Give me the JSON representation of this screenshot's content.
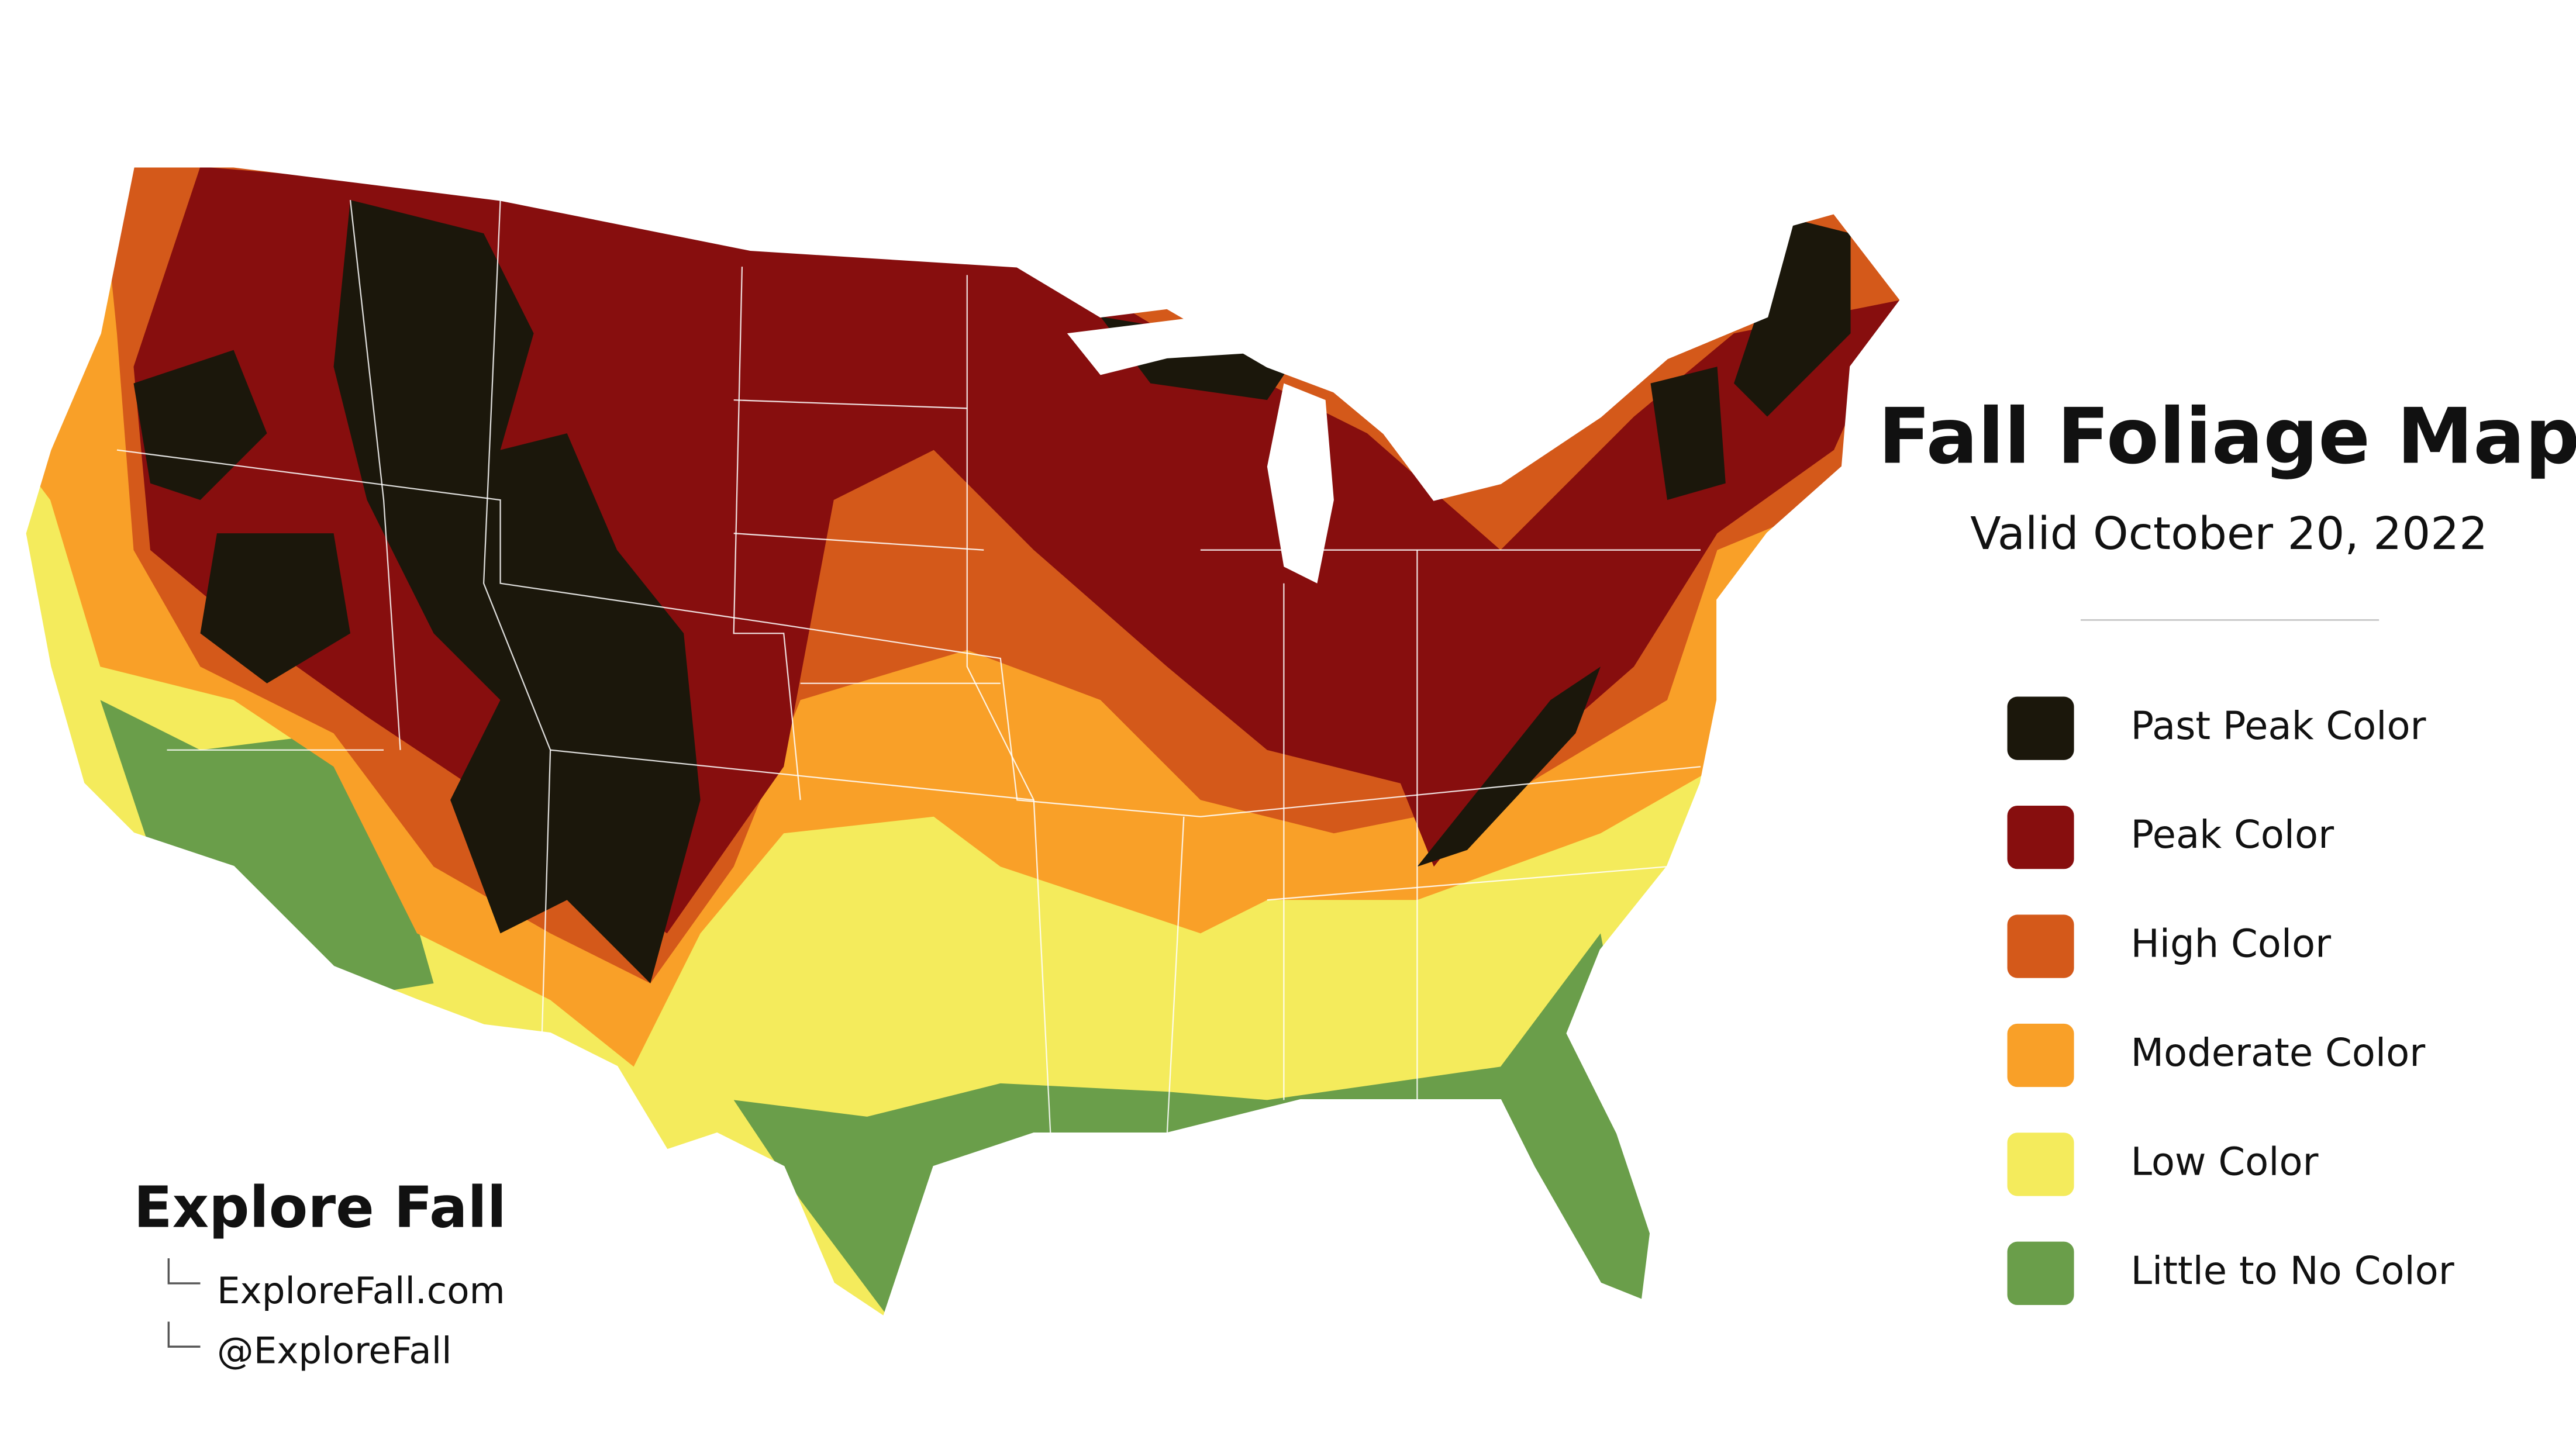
{
  "title": "Fall Foliage Map",
  "subtitle": "Valid October 20, 2022",
  "legend": {
    "items": [
      {
        "label": "Past Peak Color",
        "color": "#1b170b"
      },
      {
        "label": "Peak Color",
        "color": "#870e0e"
      },
      {
        "label": "High Color",
        "color": "#d4591a"
      },
      {
        "label": "Moderate Color",
        "color": "#f9a028"
      },
      {
        "label": "Low Color",
        "color": "#f4eb5c"
      },
      {
        "label": "Little to No Color",
        "color": "#6a9e4a"
      }
    ]
  },
  "branding": {
    "name": "Explore Fall",
    "links": [
      "ExploreFall.com",
      "@ExploreFall"
    ]
  }
}
